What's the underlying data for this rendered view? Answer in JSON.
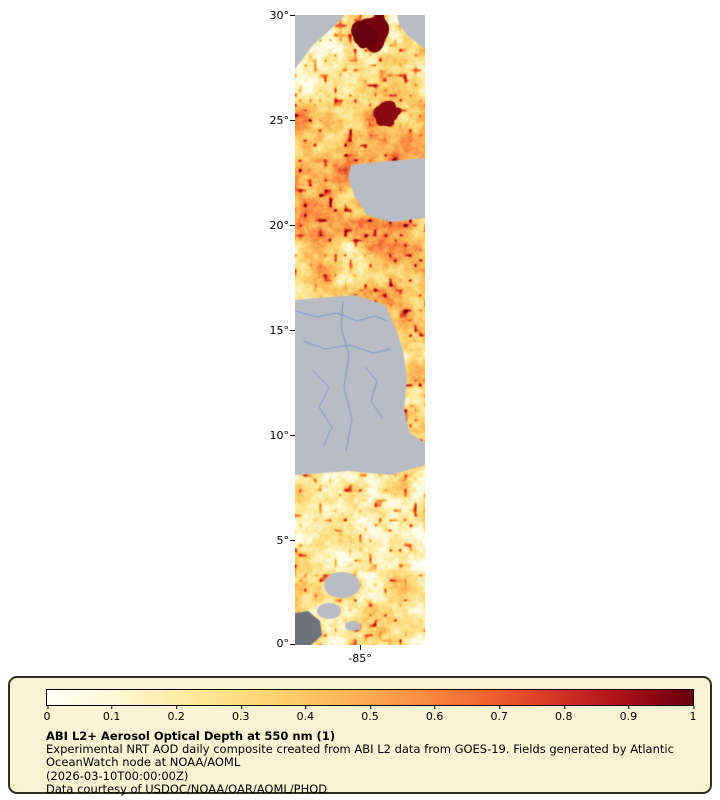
{
  "map": {
    "y_tick_labels": [
      "30°",
      "25°",
      "20°",
      "15°",
      "10°",
      "5°",
      "0°"
    ],
    "x_tick_labels": [
      "-85°"
    ],
    "nodata_color": "#b8bcc4",
    "dark_nodata_color": "#6e737b",
    "water_line_color": "#7e99cc"
  },
  "legend": {
    "title": "ABI L2+ Aerosol Optical Depth at 550 nm (1)",
    "description": "Experimental NRT AOD daily composite created from ABI L2 data from GOES-19. Fields generated by Atlantic OceanWatch node at NOAA/AOML",
    "timestamp": "(2026-03-10T00:00:00Z)",
    "credit": "Data courtesy of USDOC/NOAA/OAR/AOML/PHOD",
    "tick_labels": [
      "0",
      "0.1",
      "0.2",
      "0.3",
      "0.4",
      "0.5",
      "0.6",
      "0.7",
      "0.8",
      "0.9",
      "1"
    ],
    "background": "#f9f3d4",
    "border_color": "#2f2f23"
  },
  "colormap": [
    {
      "t": 0.0,
      "color": "#fffff2"
    },
    {
      "t": 0.1,
      "color": "#fff9d8"
    },
    {
      "t": 0.2,
      "color": "#feeca6"
    },
    {
      "t": 0.3,
      "color": "#fedd80"
    },
    {
      "t": 0.4,
      "color": "#fdc763"
    },
    {
      "t": 0.5,
      "color": "#fcab51"
    },
    {
      "t": 0.6,
      "color": "#f8853f"
    },
    {
      "t": 0.68,
      "color": "#f06432"
    },
    {
      "t": 0.75,
      "color": "#e04428"
    },
    {
      "t": 0.82,
      "color": "#c92822"
    },
    {
      "t": 0.88,
      "color": "#b0141a"
    },
    {
      "t": 0.94,
      "color": "#8c0712"
    },
    {
      "t": 1.0,
      "color": "#67000d"
    }
  ],
  "chart_data": {
    "type": "heatmap",
    "title": "ABI L2+ Aerosol Optical Depth at 550 nm (1)",
    "subtitle": "Experimental NRT AOD daily composite created from ABI L2 data from GOES-19. Fields generated by Atlantic OceanWatch node at NOAA/AOML (2026-03-10T00:00:00Z)",
    "credit": "Data courtesy of USDOC/NOAA/OAR/AOML/PHOD",
    "x_axis": {
      "tick_labels": [
        "-85°"
      ]
    },
    "y_axis": {
      "tick_labels": [
        "30°",
        "25°",
        "20°",
        "15°",
        "10°",
        "5°",
        "0°"
      ],
      "range_deg": [
        0,
        30
      ]
    },
    "colorbar": {
      "variable": "Aerosol Optical Depth at 550 nm",
      "range": [
        0,
        1
      ],
      "ticks": [
        0,
        0.1,
        0.2,
        0.3,
        0.4,
        0.5,
        0.6,
        0.7,
        0.8,
        0.9,
        1
      ],
      "position": "bottom"
    },
    "grid": false,
    "notes": "Geographic strip over Central America; gray = no retrieval/water mask, yellow-to-dark-red = increasing AOD 0 to 1, dark-red cluster near 29-30N, large gray masked region 9-15N with blue river/border lines"
  }
}
